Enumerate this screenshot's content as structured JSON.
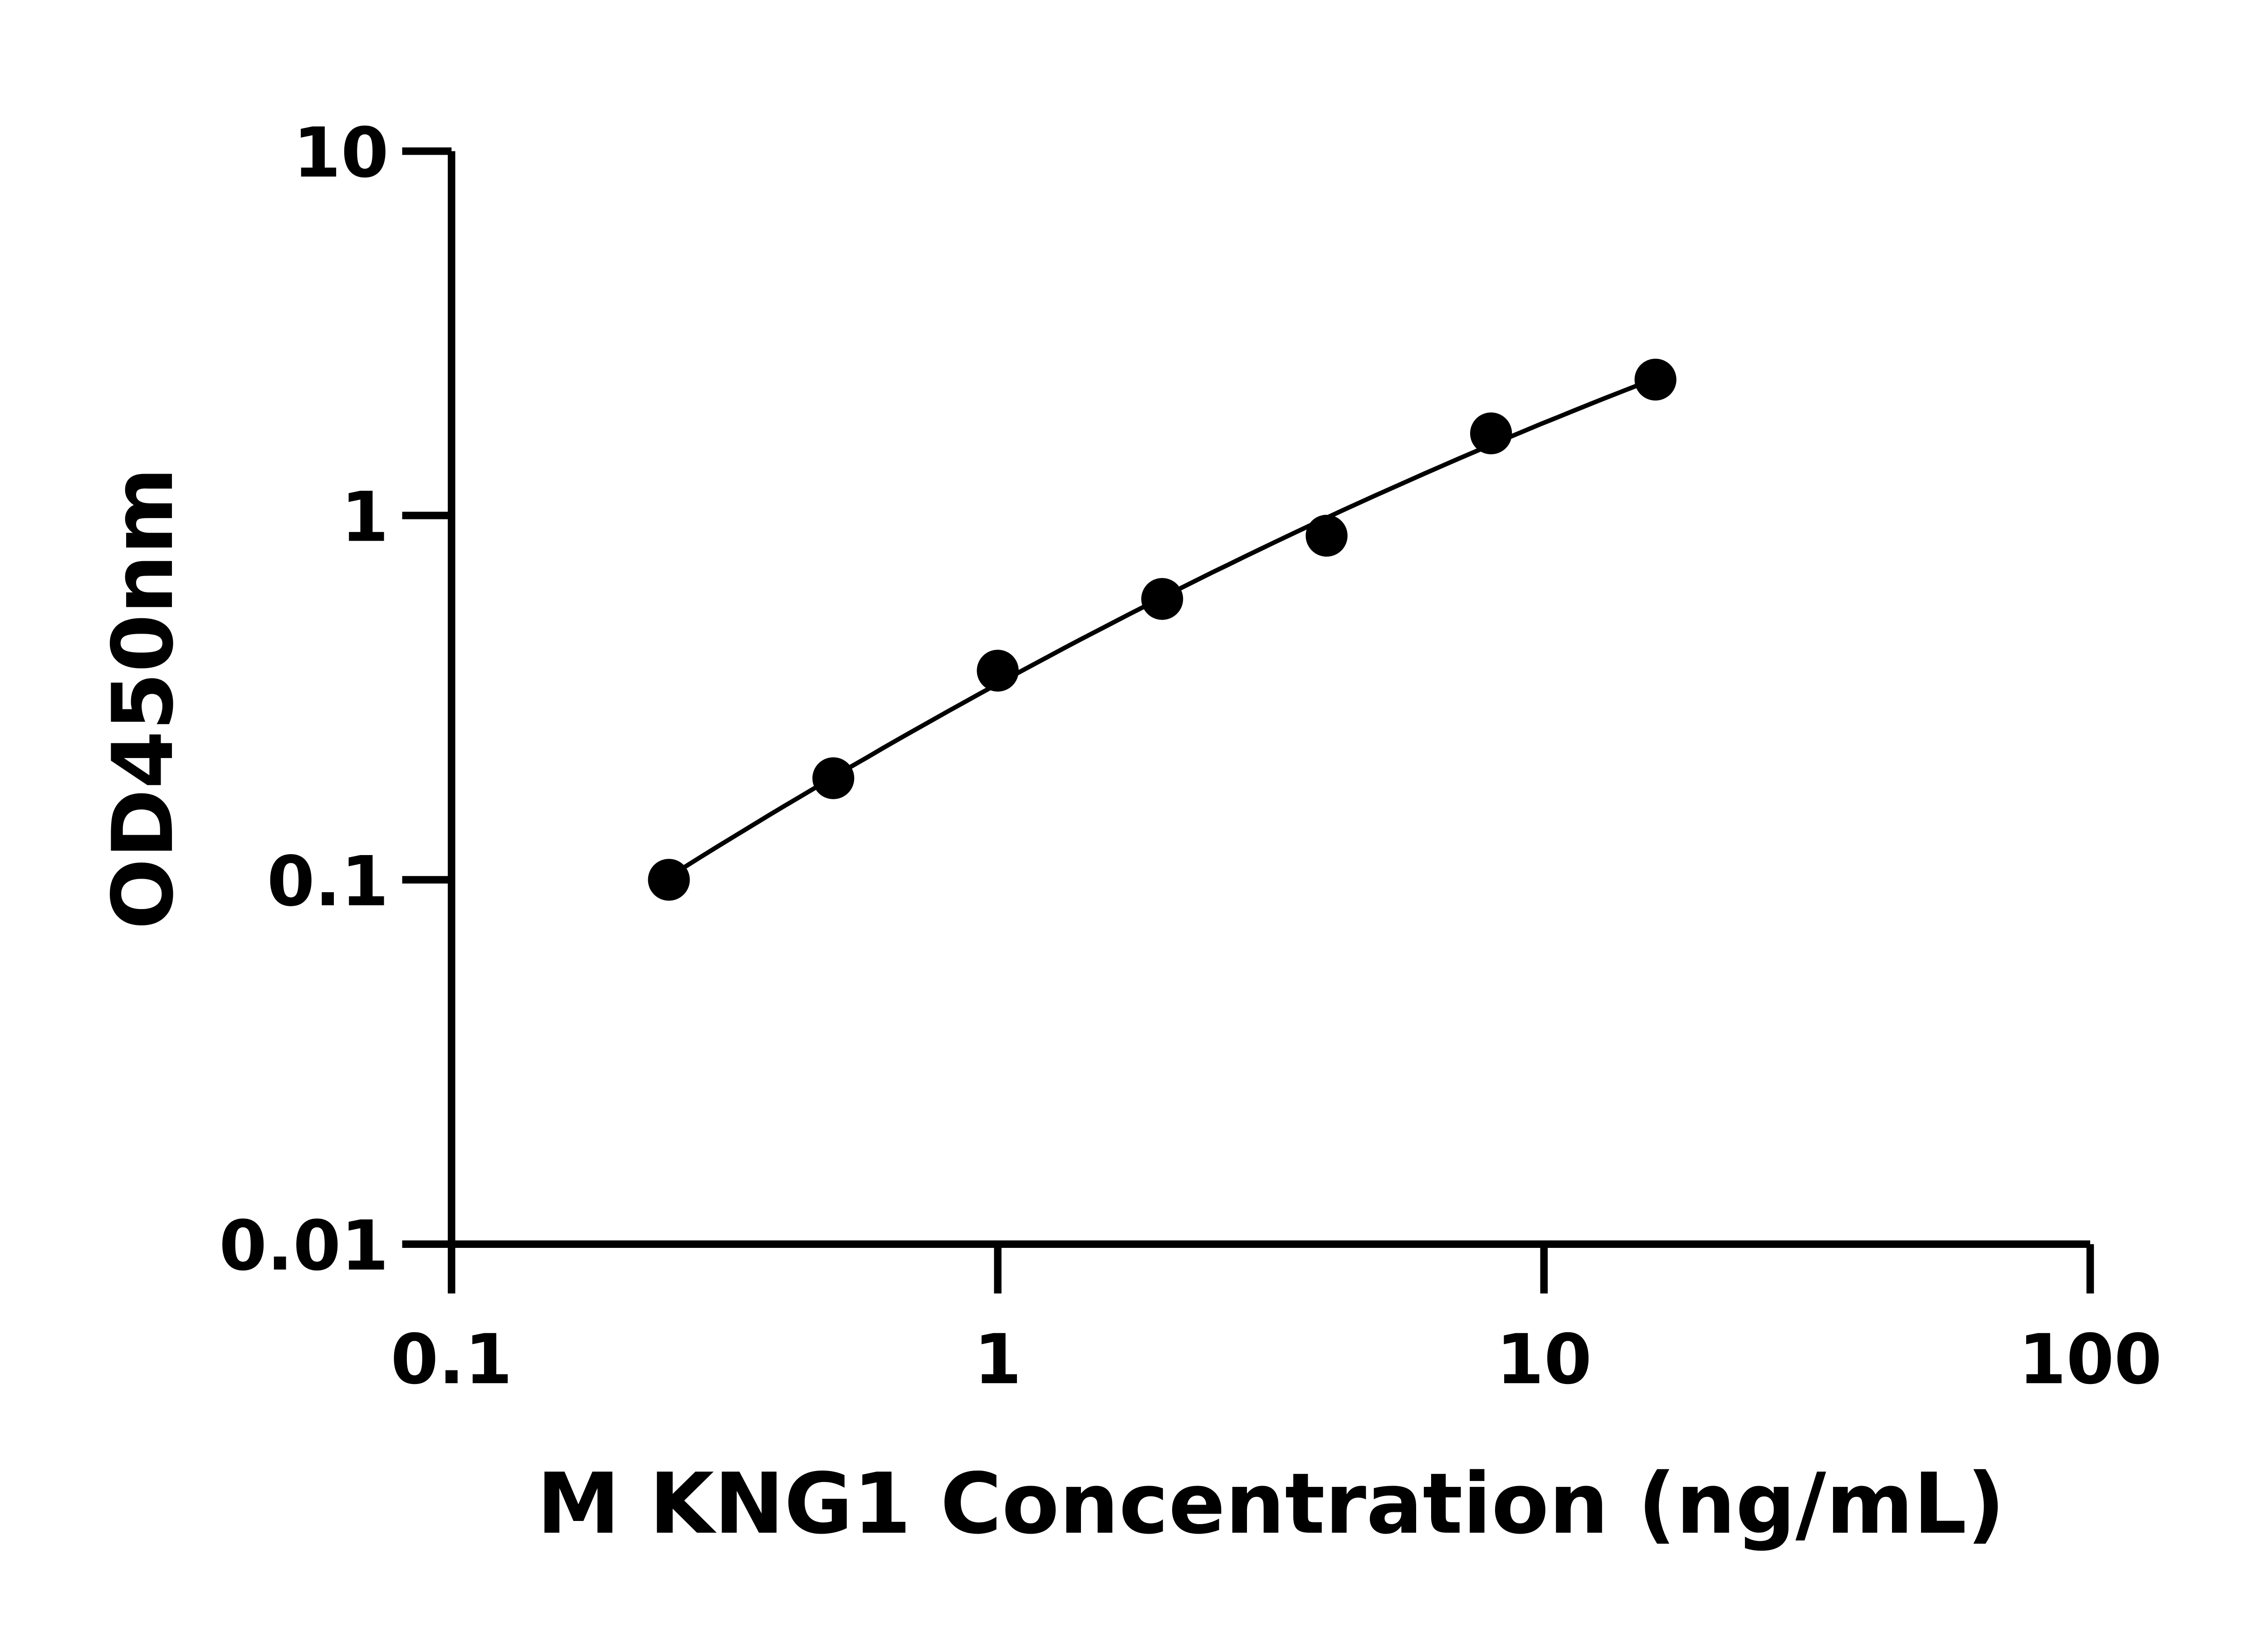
{
  "chart_data": {
    "type": "scatter",
    "title": "",
    "xlabel": "M KNG1 Concentration (ng/mL)",
    "ylabel": "OD450nm",
    "x_scale": "log",
    "y_scale": "log",
    "xlim": [
      0.1,
      100
    ],
    "ylim": [
      0.01,
      10
    ],
    "x_ticks": [
      "0.1",
      "1",
      "10",
      "100"
    ],
    "y_ticks": [
      "0.01",
      "0.1",
      "1",
      "10"
    ],
    "grid": false,
    "legend": "none",
    "fit_line": true,
    "marker_color": "#000000",
    "line_color": "#000000",
    "series": [
      {
        "x": [
          0.25,
          0.5,
          1,
          2,
          4,
          8,
          16
        ],
        "y": [
          0.1,
          0.19,
          0.375,
          0.59,
          0.88,
          1.68,
          2.36
        ]
      }
    ]
  }
}
